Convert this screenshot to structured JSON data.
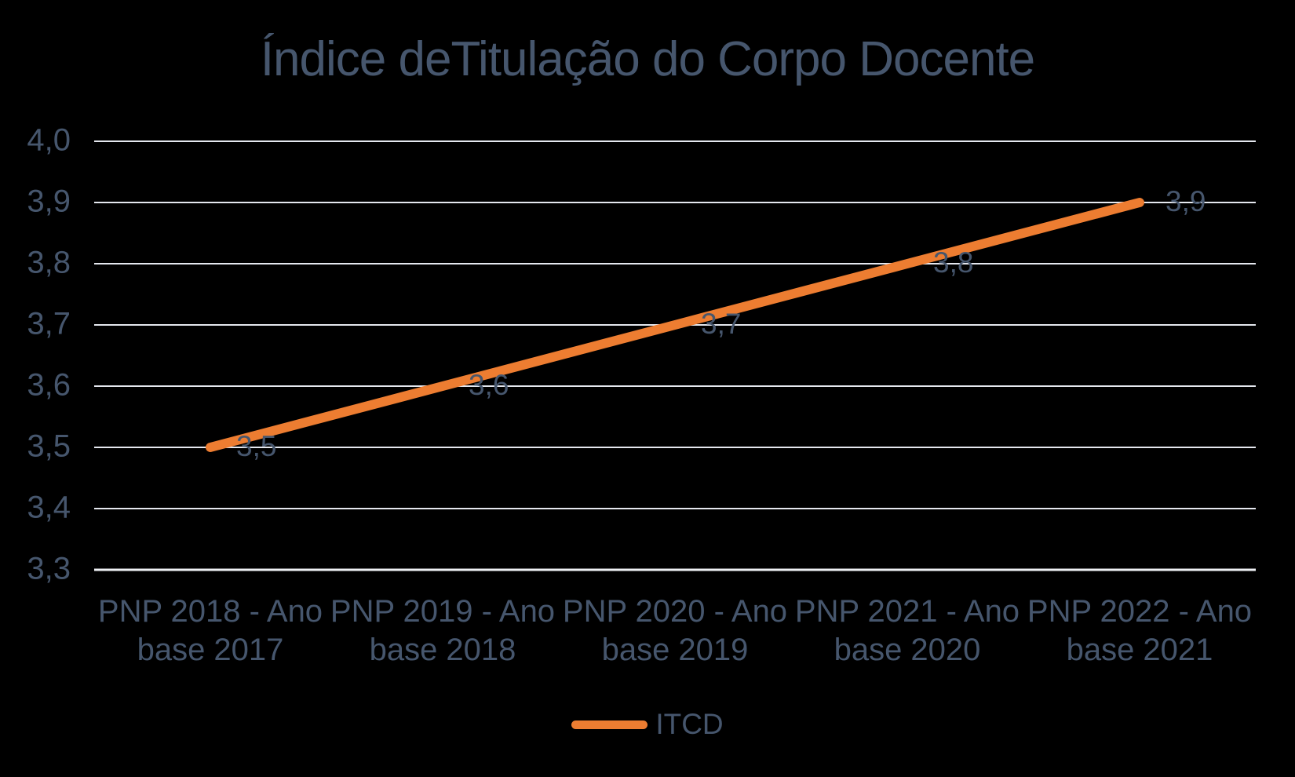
{
  "chart_data": {
    "type": "line",
    "title": "Índice deTitulação do Corpo Docente",
    "categories": [
      "PNP 2018 - Ano base 2017",
      "PNP 2019 - Ano base 2018",
      "PNP 2020 - Ano base 2019",
      "PNP 2021 - Ano base 2020",
      "PNP 2022 - Ano base 2021"
    ],
    "category_lines": [
      {
        "line1": "PNP 2018 - Ano",
        "line2": "base 2017"
      },
      {
        "line1": "PNP 2019 - Ano",
        "line2": "base 2018"
      },
      {
        "line1": "PNP 2020 - Ano",
        "line2": "base 2019"
      },
      {
        "line1": "PNP 2021 - Ano",
        "line2": "base 2020"
      },
      {
        "line1": "PNP 2022 - Ano",
        "line2": "base 2021"
      }
    ],
    "series": [
      {
        "name": "ITCD",
        "values": [
          3.5,
          3.6,
          3.7,
          3.8,
          3.9
        ]
      }
    ],
    "data_labels": [
      "3,5",
      "3,6",
      "3,7",
      "3,8",
      "3,9"
    ],
    "y_tick_labels": [
      "4,0",
      "3,9",
      "3,8",
      "3,7",
      "3,6",
      "3,5",
      "3,4",
      "3,3"
    ],
    "xlabel": "",
    "ylabel": "",
    "ylim": [
      3.3,
      4.0
    ],
    "grid": true,
    "legend_position": "bottom",
    "colors": {
      "line": "#ED7D31",
      "text": "#46566D",
      "gridline": "#E5E8EF",
      "axis_line": "#EFF1F5",
      "background": "#000000"
    }
  }
}
